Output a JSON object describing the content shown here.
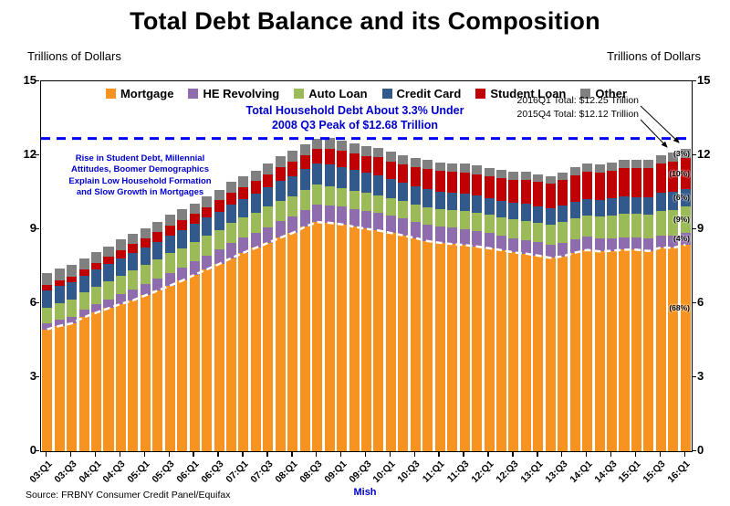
{
  "page": {
    "title": "Total Debt Balance and its Composition",
    "y_axis_title_left": "Trillions of Dollars",
    "y_axis_title_right": "Trillions of Dollars",
    "source": "Source: FRBNY Consumer Credit Panel/Equifax",
    "credit": "Mish"
  },
  "annotations": {
    "peak_note_line1": "Total Household Debt About 3.3% Under",
    "peak_note_line2": "2008 Q3 Peak of $12.68 Trillion",
    "left_note_line1": "Rise in Student Debt,  Millennial",
    "left_note_line2": "Attitudes, Boomer Demographics",
    "left_note_line3": "Explain Low Household Formation",
    "left_note_line4": "and Slow Growth in Mortgages",
    "total_2016q1": "2016Q1 Total: $12.25 Trillion",
    "total_2015q4": "2015Q4 Total: $12.12 Trillion"
  },
  "chart_data": {
    "type": "bar",
    "stacked": true,
    "title": "Total Debt Balance and its Composition",
    "ylabel": "Trillions of Dollars",
    "ylim": [
      0,
      15
    ],
    "yticks": [
      0,
      3,
      6,
      9,
      12,
      15
    ],
    "grid": false,
    "legend_position": "top-inside",
    "categories": [
      "03:Q1",
      "03:Q2",
      "03:Q3",
      "03:Q4",
      "04:Q1",
      "04:Q2",
      "04:Q3",
      "04:Q4",
      "05:Q1",
      "05:Q2",
      "05:Q3",
      "05:Q4",
      "06:Q1",
      "06:Q2",
      "06:Q3",
      "06:Q4",
      "07:Q1",
      "07:Q2",
      "07:Q3",
      "07:Q4",
      "08:Q1",
      "08:Q2",
      "08:Q3",
      "08:Q4",
      "09:Q1",
      "09:Q2",
      "09:Q3",
      "09:Q4",
      "10:Q1",
      "10:Q2",
      "10:Q3",
      "10:Q4",
      "11:Q1",
      "11:Q2",
      "11:Q3",
      "11:Q4",
      "12:Q1",
      "12:Q2",
      "12:Q3",
      "12:Q4",
      "13:Q1",
      "13:Q2",
      "13:Q3",
      "13:Q4",
      "14:Q1",
      "14:Q2",
      "14:Q3",
      "14:Q4",
      "15:Q1",
      "15:Q2",
      "15:Q3",
      "15:Q4",
      "16:Q1"
    ],
    "x_labels_every": 2,
    "series": [
      {
        "name": "Mortgage",
        "color": "#F79421",
        "values": [
          4.94,
          5.08,
          5.18,
          5.43,
          5.62,
          5.8,
          5.97,
          6.12,
          6.32,
          6.51,
          6.71,
          6.92,
          7.15,
          7.37,
          7.59,
          7.83,
          8.05,
          8.25,
          8.45,
          8.66,
          8.85,
          9.1,
          9.29,
          9.26,
          9.2,
          9.1,
          9.02,
          8.95,
          8.85,
          8.75,
          8.64,
          8.52,
          8.45,
          8.4,
          8.36,
          8.3,
          8.23,
          8.15,
          8.06,
          8.01,
          7.93,
          7.84,
          7.9,
          8.05,
          8.16,
          8.1,
          8.13,
          8.17,
          8.17,
          8.12,
          8.26,
          8.25,
          8.37
        ]
      },
      {
        "name": "HE Revolving",
        "color": "#8E6CAE",
        "values": [
          0.24,
          0.26,
          0.28,
          0.3,
          0.33,
          0.36,
          0.39,
          0.42,
          0.45,
          0.48,
          0.51,
          0.53,
          0.55,
          0.57,
          0.58,
          0.6,
          0.61,
          0.62,
          0.64,
          0.66,
          0.68,
          0.69,
          0.71,
          0.71,
          0.71,
          0.71,
          0.71,
          0.7,
          0.69,
          0.68,
          0.67,
          0.67,
          0.66,
          0.66,
          0.65,
          0.63,
          0.61,
          0.59,
          0.57,
          0.56,
          0.55,
          0.54,
          0.54,
          0.53,
          0.53,
          0.52,
          0.51,
          0.51,
          0.51,
          0.5,
          0.49,
          0.49,
          0.49
        ]
      },
      {
        "name": "Auto Loan",
        "color": "#9BBB59",
        "values": [
          0.64,
          0.66,
          0.69,
          0.7,
          0.72,
          0.74,
          0.76,
          0.79,
          0.79,
          0.79,
          0.81,
          0.79,
          0.79,
          0.8,
          0.81,
          0.82,
          0.81,
          0.81,
          0.82,
          0.82,
          0.82,
          0.81,
          0.81,
          0.79,
          0.77,
          0.76,
          0.74,
          0.74,
          0.72,
          0.71,
          0.71,
          0.71,
          0.71,
          0.72,
          0.73,
          0.73,
          0.74,
          0.75,
          0.77,
          0.78,
          0.79,
          0.81,
          0.85,
          0.86,
          0.88,
          0.9,
          0.93,
          0.95,
          0.95,
          0.98,
          1.01,
          1.04,
          1.07
        ]
      },
      {
        "name": "Credit Card",
        "color": "#31598C",
        "values": [
          0.69,
          0.69,
          0.69,
          0.7,
          0.7,
          0.7,
          0.71,
          0.72,
          0.71,
          0.72,
          0.73,
          0.73,
          0.72,
          0.73,
          0.74,
          0.76,
          0.75,
          0.77,
          0.79,
          0.82,
          0.81,
          0.83,
          0.85,
          0.87,
          0.84,
          0.83,
          0.81,
          0.81,
          0.76,
          0.74,
          0.73,
          0.73,
          0.7,
          0.69,
          0.69,
          0.7,
          0.68,
          0.67,
          0.67,
          0.68,
          0.66,
          0.66,
          0.67,
          0.68,
          0.66,
          0.67,
          0.68,
          0.7,
          0.68,
          0.7,
          0.71,
          0.73,
          0.71
        ]
      },
      {
        "name": "Student Loan",
        "color": "#C00000",
        "values": [
          0.24,
          0.24,
          0.25,
          0.25,
          0.26,
          0.28,
          0.33,
          0.35,
          0.36,
          0.38,
          0.39,
          0.39,
          0.41,
          0.43,
          0.45,
          0.47,
          0.48,
          0.5,
          0.53,
          0.55,
          0.58,
          0.59,
          0.61,
          0.64,
          0.66,
          0.68,
          0.69,
          0.71,
          0.74,
          0.76,
          0.78,
          0.81,
          0.84,
          0.85,
          0.87,
          0.87,
          0.9,
          0.91,
          0.94,
          0.97,
          0.99,
          0.99,
          1.03,
          1.08,
          1.11,
          1.12,
          1.13,
          1.16,
          1.19,
          1.19,
          1.2,
          1.23,
          1.26
        ]
      },
      {
        "name": "Other",
        "color": "#808080",
        "values": [
          0.48,
          0.47,
          0.48,
          0.45,
          0.45,
          0.43,
          0.43,
          0.43,
          0.42,
          0.43,
          0.44,
          0.45,
          0.43,
          0.43,
          0.44,
          0.45,
          0.44,
          0.44,
          0.45,
          0.45,
          0.44,
          0.43,
          0.39,
          0.43,
          0.42,
          0.41,
          0.4,
          0.39,
          0.38,
          0.37,
          0.36,
          0.36,
          0.35,
          0.35,
          0.35,
          0.35,
          0.33,
          0.33,
          0.33,
          0.33,
          0.32,
          0.31,
          0.31,
          0.31,
          0.32,
          0.32,
          0.32,
          0.33,
          0.32,
          0.33,
          0.33,
          0.38,
          0.35
        ]
      }
    ],
    "reference_line": {
      "value": 12.68,
      "color": "#0000FF",
      "style": "dashed",
      "label": "2008 Q3 Peak of $12.68 Trillion"
    },
    "mortgage_trace_line": {
      "series": "Mortgage",
      "color": "#FFFFFF",
      "style": "dashed"
    },
    "segment_share_labels": [
      {
        "series": "Other",
        "label": "(3%)"
      },
      {
        "series": "Student Loan",
        "label": "(10%)"
      },
      {
        "series": "Credit Card",
        "label": "(6%)"
      },
      {
        "series": "Auto Loan",
        "label": "(9%)"
      },
      {
        "series": "HE Revolving",
        "label": "(4%)"
      },
      {
        "series": "Mortgage",
        "label": "(68%)",
        "at": 5.8
      }
    ]
  }
}
